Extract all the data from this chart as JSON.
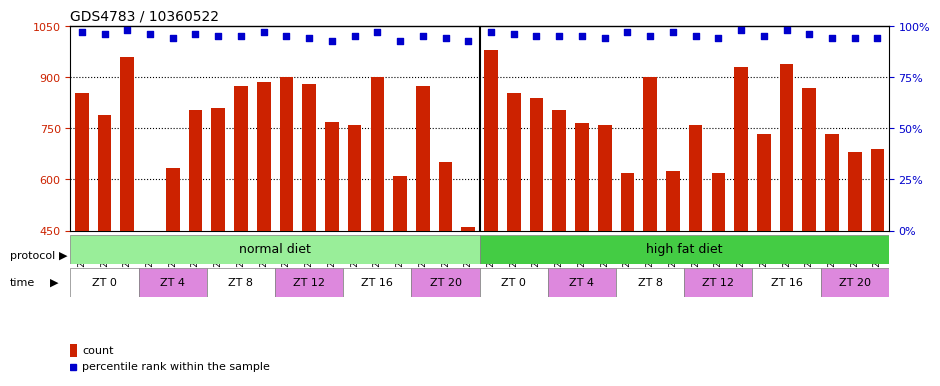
{
  "title": "GDS4783 / 10360522",
  "samples": [
    "GSM1263225",
    "GSM1263226",
    "GSM1263227",
    "GSM1263231",
    "GSM1263232",
    "GSM1263233",
    "GSM1263237",
    "GSM1263238",
    "GSM1263239",
    "GSM1263243",
    "GSM1263244",
    "GSM1263245",
    "GSM1263249",
    "GSM1263250",
    "GSM1263251",
    "GSM1263255",
    "GSM1263256",
    "GSM1263257",
    "GSM1263228",
    "GSM1263229",
    "GSM1263230",
    "GSM1263234",
    "GSM1263235",
    "GSM1263236",
    "GSM1263240",
    "GSM1263241",
    "GSM1263242",
    "GSM1263246",
    "GSM1263247",
    "GSM1263248",
    "GSM1263252",
    "GSM1263253",
    "GSM1263254",
    "GSM1263258",
    "GSM1263259",
    "GSM1263260"
  ],
  "counts": [
    855,
    790,
    960,
    450,
    635,
    805,
    810,
    875,
    885,
    900,
    880,
    770,
    760,
    900,
    610,
    875,
    650,
    460,
    980,
    855,
    840,
    805,
    765,
    760,
    620,
    900,
    625,
    760,
    620,
    930,
    735,
    940,
    870,
    735,
    680,
    690
  ],
  "percentiles": [
    97,
    96,
    98,
    96,
    94,
    96,
    95,
    95,
    97,
    95,
    94,
    93,
    95,
    97,
    93,
    95,
    94,
    93,
    97,
    96,
    95,
    95,
    95,
    94,
    97,
    95,
    97,
    95,
    94,
    98,
    95,
    98,
    96,
    94,
    94,
    94
  ],
  "ylim_left": [
    450,
    1050
  ],
  "ylim_right": [
    0,
    100
  ],
  "yticks_left": [
    450,
    600,
    750,
    900,
    1050
  ],
  "yticks_right": [
    0,
    25,
    50,
    75,
    100
  ],
  "bar_color": "#cc2200",
  "dot_color": "#0000cc",
  "grid_color": "#000000",
  "protocol_normal": "normal diet",
  "protocol_high": "high fat diet",
  "protocol_normal_color": "#99ee99",
  "protocol_high_color": "#44cc44",
  "time_labels": [
    "ZT 0",
    "ZT 4",
    "ZT 8",
    "ZT 12",
    "ZT 16",
    "ZT 20"
  ],
  "time_color_even": "#ffffff",
  "time_color_odd": "#ee88ee",
  "separator_idx": 18
}
